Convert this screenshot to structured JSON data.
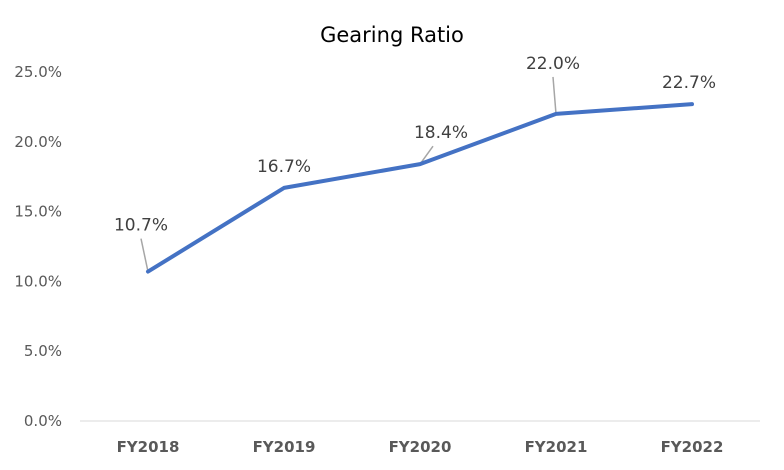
{
  "chart_data": {
    "type": "line",
    "title": "Gearing Ratio",
    "xlabel": "",
    "ylabel": "",
    "categories": [
      "FY2018",
      "FY2019",
      "FY2020",
      "FY2021",
      "FY2022"
    ],
    "series": [
      {
        "values": [
          10.7,
          16.7,
          18.4,
          22.0,
          22.7
        ],
        "data_labels": [
          "10.7%",
          "16.7%",
          "18.4%",
          "22.0%",
          "22.7%"
        ],
        "color": "#4472C4"
      }
    ],
    "ylim": [
      0,
      25
    ],
    "yticks": [
      0,
      5,
      10,
      15,
      20,
      25
    ],
    "ytick_labels": [
      "0.0%",
      "5.0%",
      "10.0%",
      "15.0%",
      "20.0%",
      "25.0%"
    ],
    "grid": false,
    "legend": "none"
  }
}
